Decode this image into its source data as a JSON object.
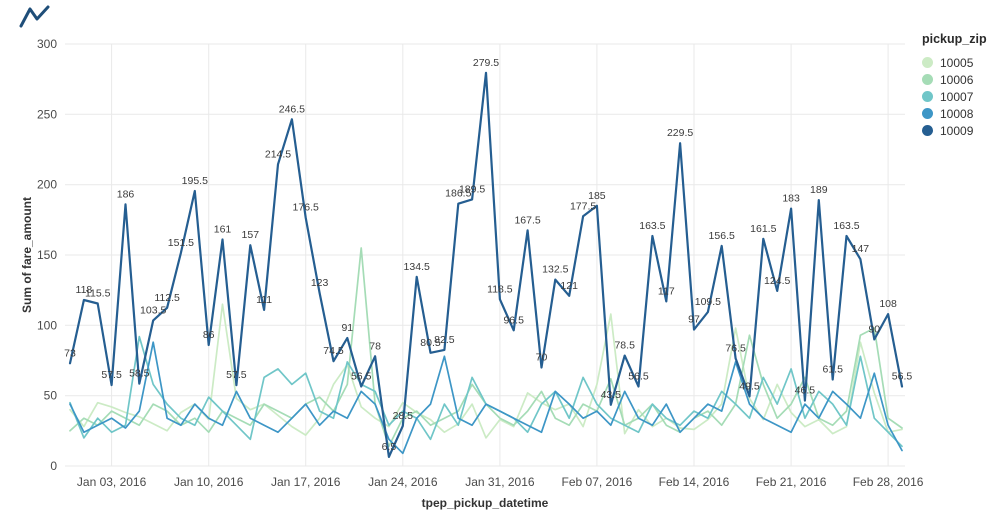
{
  "header": {
    "mini_glyph_color": "#1f4e79"
  },
  "chart_data": {
    "type": "line",
    "title": "",
    "xlabel": "tpep_pickup_datetime",
    "ylabel": "Sum of fare_amount",
    "legend_title": "pickup_zip",
    "legend_position": "right",
    "grid": true,
    "ylim": [
      0,
      300
    ],
    "yticks": [
      0,
      50,
      100,
      150,
      200,
      250,
      300
    ],
    "xticks": [
      {
        "index": 3,
        "label": "Jan 03, 2016"
      },
      {
        "index": 10,
        "label": "Jan 10, 2016"
      },
      {
        "index": 17,
        "label": "Jan 17, 2016"
      },
      {
        "index": 24,
        "label": "Jan 24, 2016"
      },
      {
        "index": 31,
        "label": "Jan 31, 2016"
      },
      {
        "index": 38,
        "label": "Feb 07, 2016"
      },
      {
        "index": 45,
        "label": "Feb 14, 2016"
      },
      {
        "index": 52,
        "label": "Feb 21, 2016"
      },
      {
        "index": 59,
        "label": "Feb 28, 2016"
      }
    ],
    "series": [
      {
        "name": "10005",
        "color": "#ccebc5",
        "show_labels": false,
        "values": [
          40,
          28,
          45,
          42,
          38,
          35,
          30,
          25,
          38,
          44,
          33,
          115,
          48,
          40,
          44,
          36,
          28,
          22,
          34,
          58,
          72,
          42,
          34,
          28,
          45,
          38,
          33,
          24,
          30,
          44,
          20,
          33,
          28,
          52,
          45,
          40,
          44,
          28,
          58,
          108,
          23,
          40,
          28,
          34,
          27,
          26,
          33,
          44,
          98,
          48,
          33,
          58,
          38,
          28,
          33,
          23,
          28,
          88,
          52,
          24,
          26
        ]
      },
      {
        "name": "10006",
        "color": "#a5dcb6",
        "show_labels": false,
        "values": [
          25,
          34,
          29,
          39,
          34,
          29,
          44,
          39,
          29,
          34,
          24,
          39,
          34,
          29,
          44,
          39,
          34,
          44,
          49,
          39,
          58,
          155,
          44,
          14,
          34,
          39,
          29,
          34,
          39,
          58,
          44,
          34,
          29,
          39,
          53,
          34,
          29,
          44,
          39,
          62,
          29,
          34,
          44,
          29,
          24,
          34,
          39,
          29,
          44,
          93,
          58,
          34,
          44,
          63,
          34,
          29,
          39,
          93,
          98,
          34,
          27
        ]
      },
      {
        "name": "10007",
        "color": "#70c6c8",
        "show_labels": false,
        "values": [
          45,
          20,
          34,
          24,
          29,
          92,
          58,
          44,
          34,
          29,
          49,
          39,
          29,
          19,
          63,
          69,
          58,
          66,
          39,
          34,
          74,
          58,
          53,
          29,
          39,
          34,
          19,
          44,
          29,
          63,
          44,
          39,
          34,
          24,
          44,
          53,
          34,
          63,
          44,
          34,
          29,
          24,
          44,
          34,
          29,
          39,
          34,
          53,
          44,
          34,
          63,
          44,
          69,
          34,
          53,
          44,
          29,
          78,
          34,
          24,
          14
        ]
      },
      {
        "name": "10008",
        "color": "#3d96c6",
        "show_labels": false,
        "values": [
          44,
          24,
          29,
          34,
          27,
          39,
          88,
          34,
          29,
          44,
          34,
          29,
          53,
          34,
          29,
          24,
          34,
          44,
          29,
          39,
          34,
          53,
          44,
          19,
          9,
          34,
          44,
          78,
          34,
          29,
          44,
          39,
          34,
          29,
          24,
          53,
          44,
          34,
          39,
          29,
          53,
          34,
          29,
          44,
          24,
          34,
          44,
          39,
          74,
          44,
          34,
          29,
          24,
          44,
          34,
          53,
          44,
          34,
          66,
          29,
          11
        ]
      },
      {
        "name": "10009",
        "color": "#255e91",
        "show_labels": true,
        "values": [
          73,
          118,
          115.5,
          57.5,
          186,
          58.5,
          103.5,
          112.5,
          151.5,
          195.5,
          86,
          161,
          57.5,
          157,
          111,
          214.5,
          246.5,
          176.5,
          123,
          74.5,
          91,
          56.5,
          78,
          6.5,
          28.5,
          134.5,
          80.5,
          82.5,
          186.5,
          189.5,
          279.5,
          118.5,
          96.5,
          167.5,
          70,
          132.5,
          121,
          177.5,
          185,
          43.5,
          78.5,
          56.5,
          163.5,
          117,
          229.5,
          97,
          109.5,
          156.5,
          76.5,
          49.5,
          161.5,
          124.5,
          183,
          46.5,
          189,
          61.5,
          163.5,
          147,
          90,
          108,
          56.5
        ]
      }
    ]
  }
}
